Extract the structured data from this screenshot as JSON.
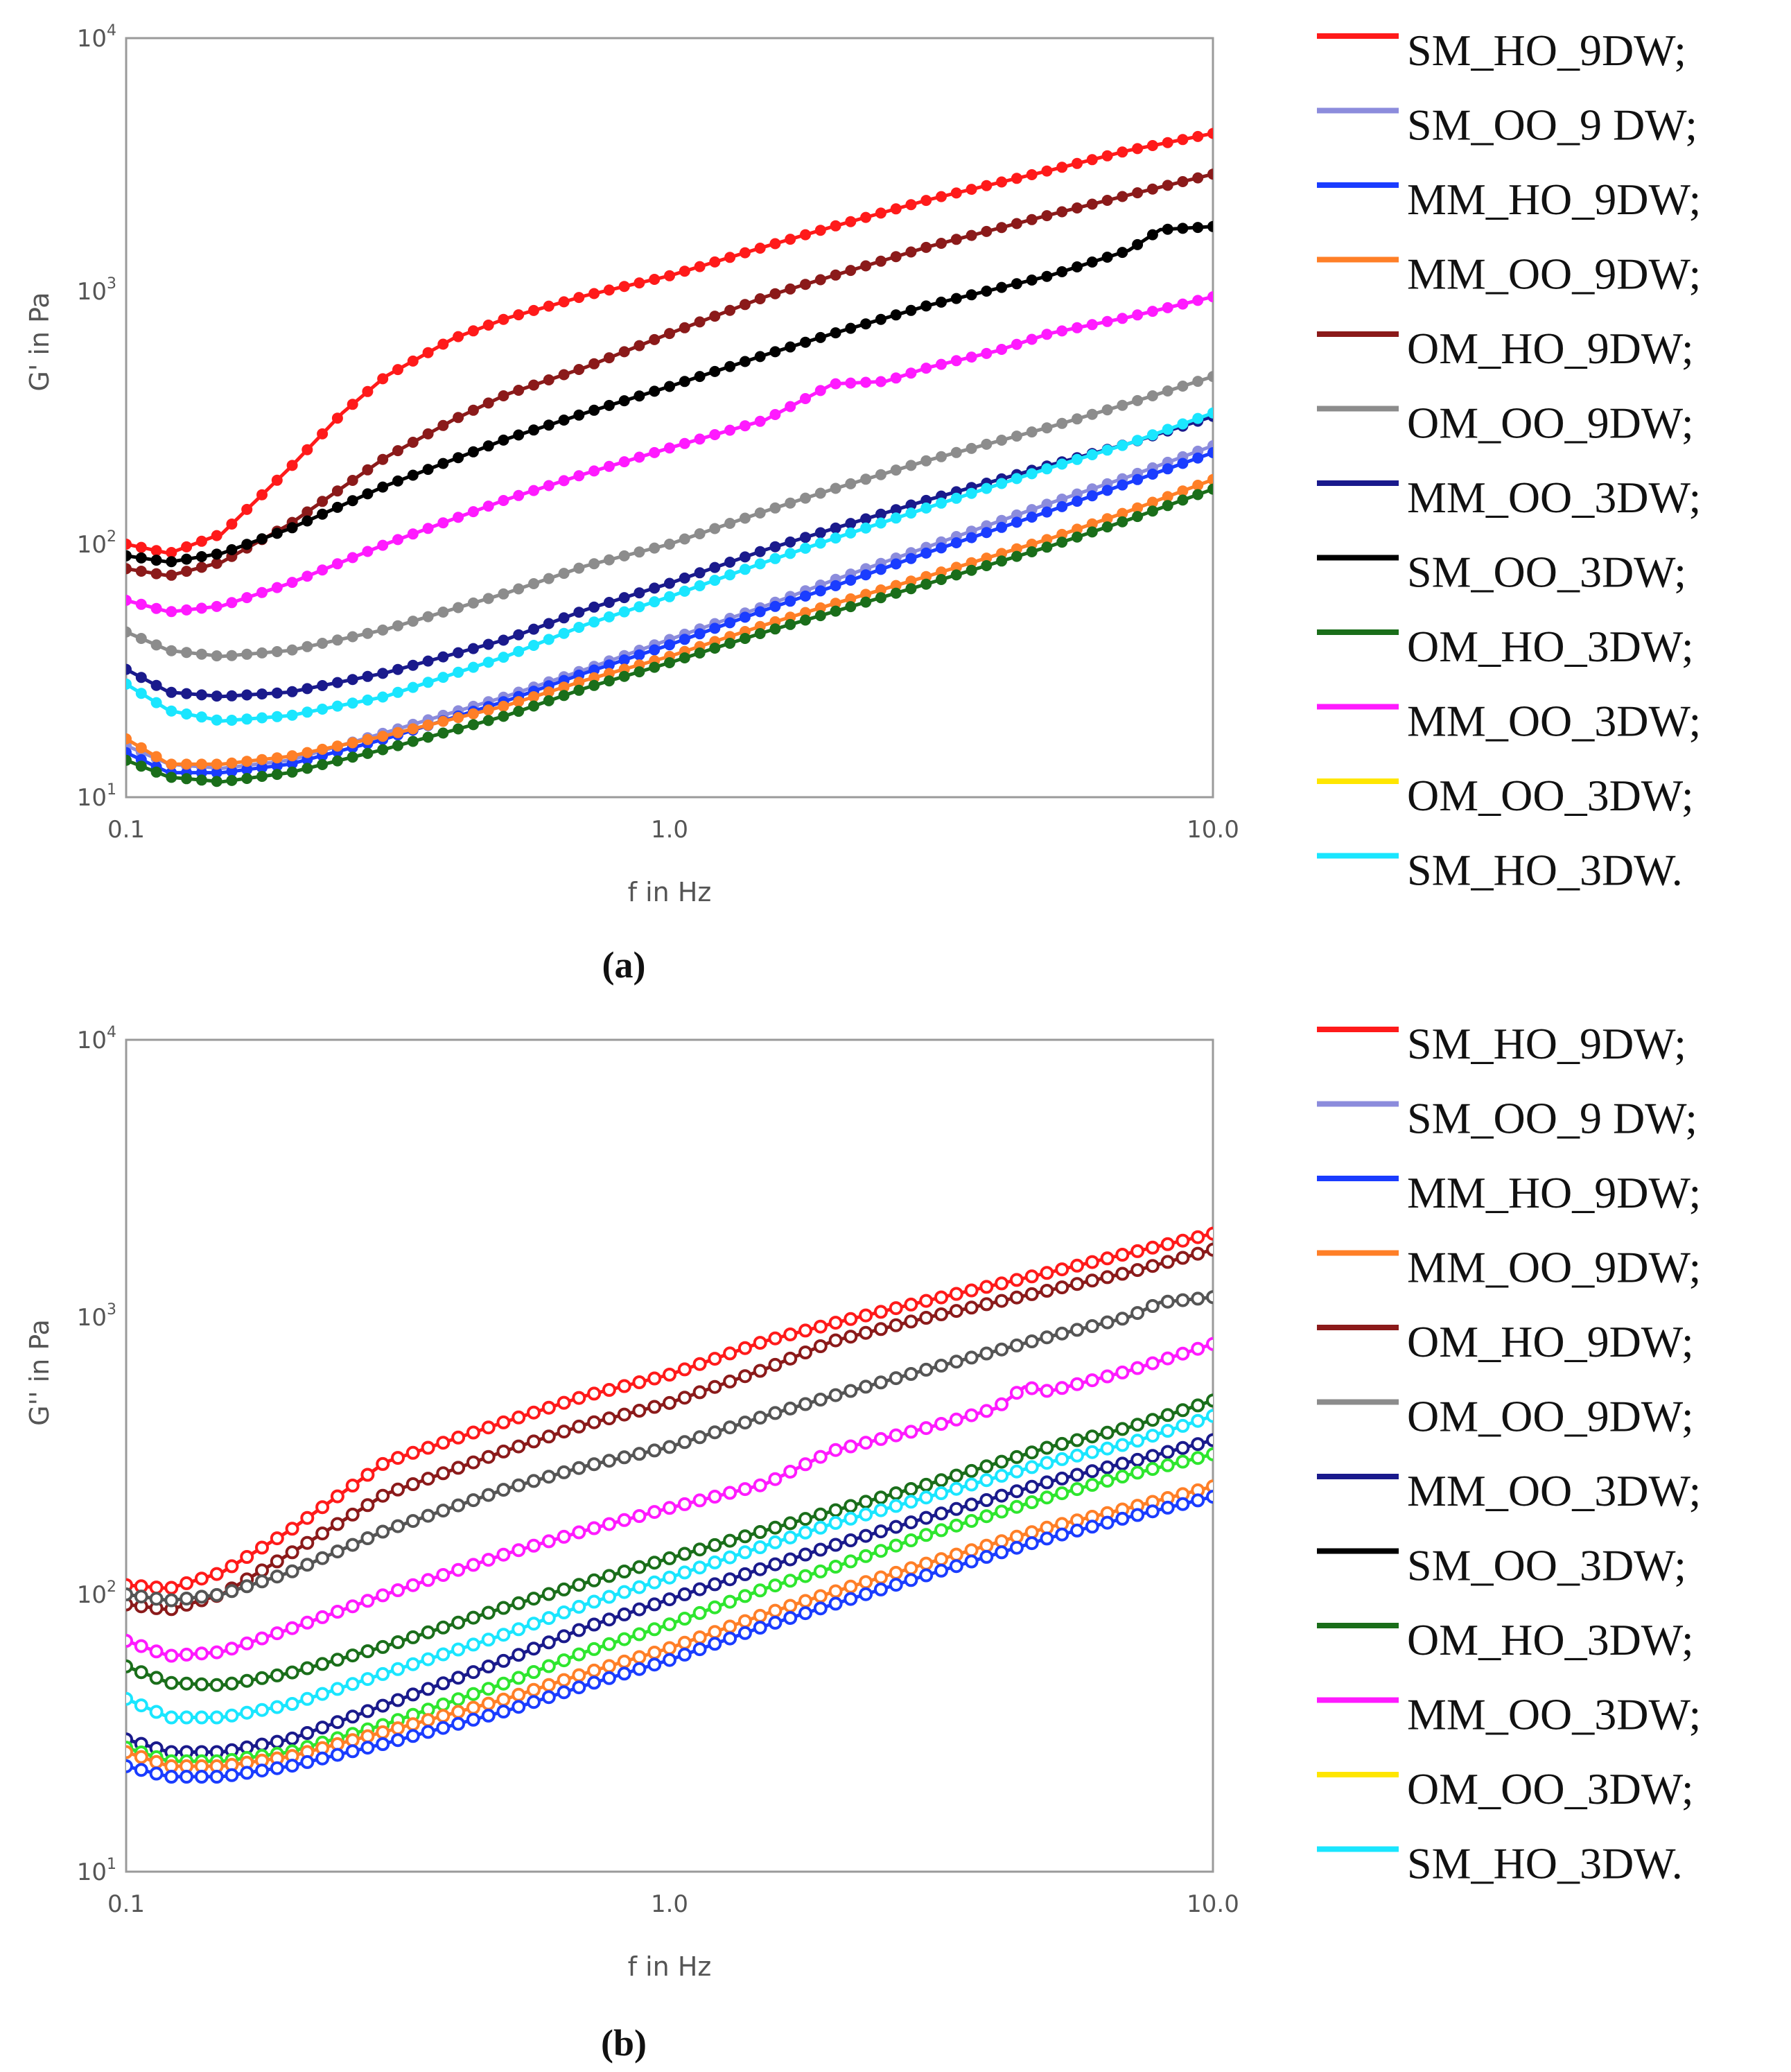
{
  "chart_data": [
    {
      "type": "line",
      "caption": "(a)",
      "xlabel": "f in Hz",
      "ylabel": "G' in Pa",
      "xscale": "log",
      "yscale": "log",
      "xlim": [
        0.1,
        10.0
      ],
      "ylim": [
        10,
        10000
      ],
      "x_ticks": [
        "0.1",
        "1.0",
        "10.0"
      ],
      "y_ticks": [
        {
          "base": "10",
          "exp": "1"
        },
        {
          "base": "10",
          "exp": "2"
        },
        {
          "base": "10",
          "exp": "3"
        },
        {
          "base": "10",
          "exp": "4"
        }
      ],
      "grid": false,
      "marker": "filled",
      "legend_position": "right",
      "legend": [
        {
          "label": "SM_HO_9DW;",
          "color": "#ff1a1a"
        },
        {
          "label": "SM_OO_9 DW;",
          "color": "#8c8cdc"
        },
        {
          "label": "MM_HO_9DW;",
          "color": "#1a3cff"
        },
        {
          "label": "MM_OO_9DW;",
          "color": "#ff7f27"
        },
        {
          "label": "OM_HO_9DW;",
          "color": "#8b1a1a"
        },
        {
          "label": "OM_OO_9DW;",
          "color": "#8c8c8c"
        },
        {
          "label": "MM_OO_3DW;",
          "color": "#1a1a8c"
        },
        {
          "label": "SM_OO_3DW;",
          "color": "#000000"
        },
        {
          "label": "OM_HO_3DW;",
          "color": "#1a6e1a"
        },
        {
          "label": "MM_OO_3DW;",
          "color": "#ff1aff"
        },
        {
          "label": "OM_OO_3DW;",
          "color": "#ffe600"
        },
        {
          "label": "SM_HO_3DW.",
          "color": "#1ae6ff"
        }
      ],
      "series": [
        {
          "color": "#ff1a1a",
          "x": [
            0.1,
            0.12,
            0.15,
            0.2,
            0.25,
            0.3,
            0.4,
            0.5,
            0.7,
            1.0,
            1.5,
            2.0,
            3.0,
            5.0,
            7.0,
            10.0
          ],
          "y": [
            100,
            92,
            110,
            200,
            330,
            460,
            650,
            780,
            960,
            1150,
            1500,
            1800,
            2300,
            3000,
            3600,
            4200
          ]
        },
        {
          "color": "#8b1a1a",
          "x": [
            0.1,
            0.12,
            0.15,
            0.2,
            0.3,
            0.4,
            0.5,
            0.7,
            1.0,
            1.5,
            2.0,
            3.0,
            5.0,
            7.0,
            10.0
          ],
          "y": [
            80,
            75,
            85,
            120,
            220,
            310,
            390,
            500,
            680,
            950,
            1150,
            1500,
            2000,
            2400,
            2900
          ]
        },
        {
          "color": "#000000",
          "x": [
            0.1,
            0.12,
            0.15,
            0.2,
            0.3,
            0.5,
            0.7,
            1.0,
            1.5,
            2.0,
            3.0,
            5.0,
            7.0,
            8.0,
            10.0
          ],
          "y": [
            90,
            85,
            92,
            115,
            170,
            260,
            330,
            420,
            560,
            680,
            880,
            1150,
            1450,
            1750,
            1800
          ]
        },
        {
          "color": "#ff1aff",
          "x": [
            0.1,
            0.12,
            0.15,
            0.2,
            0.3,
            0.5,
            0.7,
            1.0,
            1.5,
            2.0,
            2.5,
            3.0,
            4.0,
            5.0,
            7.0,
            10.0
          ],
          "y": [
            60,
            54,
            57,
            70,
            100,
            150,
            190,
            240,
            310,
            430,
            440,
            500,
            580,
            680,
            790,
            950
          ]
        },
        {
          "color": "#8c8c8c",
          "x": [
            0.1,
            0.12,
            0.15,
            0.2,
            0.3,
            0.5,
            0.7,
            1.0,
            1.5,
            2.0,
            3.0,
            5.0,
            7.0,
            10.0
          ],
          "y": [
            45,
            38,
            36,
            38,
            46,
            64,
            82,
            100,
            135,
            165,
            215,
            290,
            360,
            460
          ]
        },
        {
          "color": "#1a1a8c",
          "x": [
            0.1,
            0.12,
            0.15,
            0.2,
            0.3,
            0.5,
            0.7,
            1.0,
            1.5,
            2.0,
            3.0,
            5.0,
            7.0,
            10.0
          ],
          "y": [
            32,
            26,
            25,
            26,
            31,
            42,
            55,
            70,
            95,
            115,
            150,
            205,
            250,
            320
          ]
        },
        {
          "color": "#1ae6ff",
          "x": [
            0.1,
            0.12,
            0.15,
            0.2,
            0.3,
            0.5,
            0.7,
            1.0,
            1.5,
            2.0,
            3.0,
            5.0,
            7.0,
            10.0
          ],
          "y": [
            28,
            22,
            20,
            21,
            25,
            36,
            48,
            62,
            85,
            105,
            140,
            200,
            250,
            330
          ]
        },
        {
          "color": "#8c8cdc",
          "x": [
            0.1,
            0.12,
            0.15,
            0.2,
            0.3,
            0.5,
            0.7,
            1.0,
            1.5,
            2.0,
            3.0,
            5.0,
            7.0,
            10.0
          ],
          "y": [
            16,
            13.5,
            13,
            14,
            18,
            25,
            32,
            42,
            57,
            72,
            98,
            145,
            185,
            245
          ]
        },
        {
          "color": "#1a3cff",
          "x": [
            0.1,
            0.12,
            0.15,
            0.2,
            0.3,
            0.5,
            0.7,
            1.0,
            1.5,
            2.0,
            3.0,
            5.0,
            7.0,
            10.0
          ],
          "y": [
            15,
            12.5,
            12.5,
            13.5,
            17,
            24,
            31,
            40,
            55,
            68,
            93,
            135,
            175,
            230
          ]
        },
        {
          "color": "#ff7f27",
          "x": [
            0.1,
            0.12,
            0.15,
            0.2,
            0.3,
            0.5,
            0.7,
            1.0,
            1.5,
            2.0,
            3.0,
            5.0,
            7.0,
            10.0
          ],
          "y": [
            17,
            13.5,
            13.5,
            14.5,
            17.5,
            23,
            29,
            36,
            48,
            58,
            75,
            105,
            135,
            180
          ]
        },
        {
          "color": "#1a6e1a",
          "x": [
            0.1,
            0.12,
            0.15,
            0.2,
            0.3,
            0.5,
            0.7,
            1.0,
            1.5,
            2.0,
            3.0,
            5.0,
            7.0,
            10.0
          ],
          "y": [
            14,
            12,
            11.5,
            12.5,
            15.5,
            21,
            27,
            34,
            45,
            54,
            70,
            98,
            125,
            165
          ]
        }
      ]
    },
    {
      "type": "line",
      "caption": "(b)",
      "xlabel": "f in Hz",
      "ylabel": "G'' in Pa",
      "xscale": "log",
      "yscale": "log",
      "xlim": [
        0.1,
        10.0
      ],
      "ylim": [
        10,
        10000
      ],
      "x_ticks": [
        "0.1",
        "1.0",
        "10.0"
      ],
      "y_ticks": [
        {
          "base": "10",
          "exp": "1"
        },
        {
          "base": "10",
          "exp": "2"
        },
        {
          "base": "10",
          "exp": "3"
        },
        {
          "base": "10",
          "exp": "4"
        }
      ],
      "grid": false,
      "marker": "open",
      "legend_position": "right",
      "legend": [
        {
          "label": "SM_HO_9DW;",
          "color": "#ff1a1a"
        },
        {
          "label": "SM_OO_9 DW;",
          "color": "#8c8cdc"
        },
        {
          "label": "MM_HO_9DW;",
          "color": "#1a3cff"
        },
        {
          "label": "MM_OO_9DW;",
          "color": "#ff7f27"
        },
        {
          "label": "OM_HO_9DW;",
          "color": "#8b1a1a"
        },
        {
          "label": "OM_OO_9DW;",
          "color": "#8c8c8c"
        },
        {
          "label": "MM_OO_3DW;",
          "color": "#1a1a8c"
        },
        {
          "label": "SM_OO_3DW;",
          "color": "#000000"
        },
        {
          "label": "OM_HO_3DW;",
          "color": "#1a6e1a"
        },
        {
          "label": "MM_OO_3DW;",
          "color": "#ff1aff"
        },
        {
          "label": "OM_OO_3DW;",
          "color": "#ffe600"
        },
        {
          "label": "SM_HO_3DW.",
          "color": "#1ae6ff"
        }
      ],
      "series": [
        {
          "color": "#ff1a1a",
          "x": [
            0.1,
            0.12,
            0.15,
            0.2,
            0.3,
            0.5,
            0.7,
            1.0,
            1.5,
            2.0,
            3.0,
            5.0,
            7.0,
            10.0
          ],
          "y": [
            108,
            105,
            120,
            170,
            300,
            420,
            520,
            620,
            820,
            950,
            1150,
            1450,
            1700,
            2000
          ]
        },
        {
          "color": "#8b1a1a",
          "x": [
            0.1,
            0.12,
            0.15,
            0.2,
            0.3,
            0.5,
            0.7,
            1.0,
            1.5,
            2.0,
            3.0,
            5.0,
            7.0,
            10.0
          ],
          "y": [
            92,
            88,
            100,
            140,
            230,
            330,
            410,
            490,
            650,
            820,
            1000,
            1250,
            1450,
            1750
          ]
        },
        {
          "color": "#555555",
          "x": [
            0.1,
            0.12,
            0.15,
            0.2,
            0.3,
            0.5,
            0.7,
            1.0,
            1.5,
            2.0,
            3.0,
            5.0,
            7.0,
            8.0,
            10.0
          ],
          "y": [
            100,
            95,
            100,
            120,
            170,
            240,
            290,
            340,
            440,
            520,
            650,
            850,
            1000,
            1130,
            1180
          ]
        },
        {
          "color": "#ff1aff",
          "x": [
            0.1,
            0.12,
            0.15,
            0.2,
            0.3,
            0.5,
            0.7,
            1.0,
            1.5,
            2.0,
            3.0,
            4.0,
            4.5,
            5.0,
            7.0,
            10.0
          ],
          "y": [
            68,
            60,
            62,
            75,
            100,
            140,
            170,
            205,
            250,
            330,
            400,
            470,
            560,
            540,
            640,
            800
          ]
        },
        {
          "color": "#1a6e1a",
          "x": [
            0.1,
            0.12,
            0.15,
            0.2,
            0.3,
            0.5,
            0.7,
            1.0,
            1.5,
            2.0,
            3.0,
            5.0,
            7.0,
            10.0
          ],
          "y": [
            55,
            48,
            47,
            52,
            65,
            90,
            110,
            135,
            170,
            200,
            250,
            340,
            400,
            500
          ]
        },
        {
          "color": "#1ae6ff",
          "x": [
            0.1,
            0.12,
            0.15,
            0.2,
            0.3,
            0.5,
            0.7,
            1.0,
            1.5,
            2.0,
            3.0,
            5.0,
            7.0,
            10.0
          ],
          "y": [
            42,
            36,
            36,
            40,
            52,
            72,
            92,
            115,
            150,
            180,
            225,
            300,
            350,
            440
          ]
        },
        {
          "color": "#1a1a8c",
          "x": [
            0.1,
            0.12,
            0.15,
            0.2,
            0.3,
            0.5,
            0.7,
            1.0,
            1.5,
            2.0,
            3.0,
            5.0,
            7.0,
            10.0
          ],
          "y": [
            30,
            27,
            27,
            30,
            40,
            58,
            76,
            96,
            125,
            150,
            190,
            255,
            300,
            360
          ]
        },
        {
          "color": "#2ee62e",
          "x": [
            0.1,
            0.12,
            0.15,
            0.2,
            0.3,
            0.5,
            0.7,
            1.0,
            1.5,
            2.0,
            3.0,
            5.0,
            7.0,
            10.0
          ],
          "y": [
            28,
            25,
            25,
            27,
            34,
            48,
            62,
            78,
            105,
            125,
            165,
            225,
            270,
            320
          ]
        },
        {
          "color": "#ff7f27",
          "x": [
            0.1,
            0.12,
            0.15,
            0.2,
            0.3,
            0.5,
            0.7,
            1.0,
            1.5,
            2.0,
            3.0,
            5.0,
            7.0,
            10.0
          ],
          "y": [
            27,
            24,
            24,
            26,
            32,
            42,
            52,
            64,
            85,
            102,
            130,
            175,
            205,
            245
          ]
        },
        {
          "color": "#1a3cff",
          "x": [
            0.1,
            0.12,
            0.15,
            0.2,
            0.3,
            0.5,
            0.7,
            1.0,
            1.5,
            2.0,
            3.0,
            5.0,
            7.0,
            10.0
          ],
          "y": [
            24,
            22,
            22,
            24,
            29,
            38,
            47,
            58,
            77,
            92,
            118,
            160,
            190,
            225
          ]
        }
      ]
    }
  ]
}
